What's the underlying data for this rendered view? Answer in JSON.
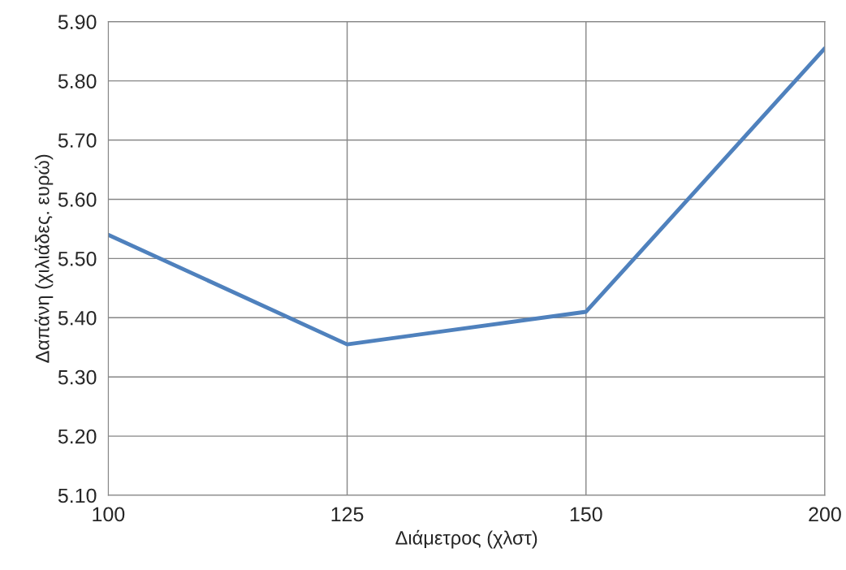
{
  "chart_data": {
    "type": "line",
    "xlabel": "Διάμετρος (χλστ)",
    "ylabel": "Δαπάνη (χιλιάδες. ευρώ)",
    "categories": [
      "100",
      "125",
      "150",
      "200"
    ],
    "series": [
      {
        "color": "#4f81bd",
        "values": [
          5.54,
          5.355,
          5.41,
          5.855
        ]
      }
    ],
    "ylim": [
      5.1,
      5.9
    ],
    "yticks": [
      {
        "value": 5.1,
        "label": "5.10"
      },
      {
        "value": 5.2,
        "label": "5.20"
      },
      {
        "value": 5.3,
        "label": "5.30"
      },
      {
        "value": 5.4,
        "label": "5.40"
      },
      {
        "value": 5.5,
        "label": "5.50"
      },
      {
        "value": 5.6,
        "label": "5.60"
      },
      {
        "value": 5.7,
        "label": "5.70"
      },
      {
        "value": 5.8,
        "label": "5.80"
      },
      {
        "value": 5.9,
        "label": "5.90"
      }
    ],
    "grid": true,
    "marker": "none",
    "line_style": "solid"
  }
}
